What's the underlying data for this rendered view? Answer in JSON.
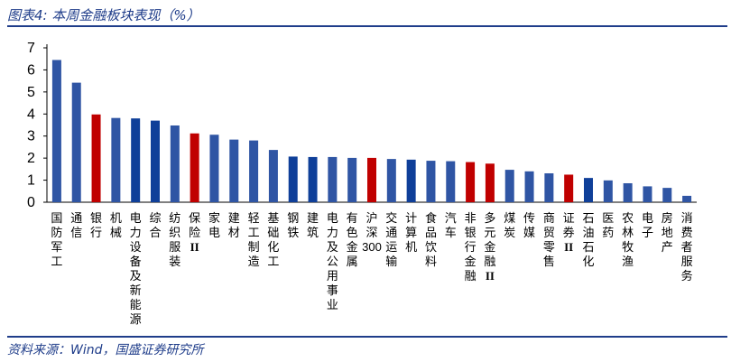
{
  "header": {
    "title": "图表4:  本周金融板块表现（%）"
  },
  "footer": {
    "source": "资料来源：Wind，国盛证券研究所"
  },
  "colors": {
    "blue": "#2f55a4",
    "dark_blue": "#0f3f99",
    "red": "#c00000",
    "title_blue": "#1f3d8a"
  },
  "chart_data": {
    "type": "bar",
    "title": "本周金融板块表现（%）",
    "xlabel": "",
    "ylabel": "",
    "ylim": [
      0,
      7
    ],
    "yticks": [
      0,
      1,
      2,
      3,
      4,
      5,
      6,
      7
    ],
    "grid": false,
    "categories": [
      "国防军工",
      "通信",
      "银行",
      "机械",
      "电力设备及新能源",
      "综合",
      "纺织服装",
      "保险II",
      "家电",
      "建材",
      "轻工制造",
      "基础化工",
      "钢铁",
      "建筑",
      "电力及公用事业",
      "有色金属",
      "沪深300",
      "交通运输",
      "计算机",
      "食品饮料",
      "汽车",
      "非银行金融",
      "多元金融II",
      "煤炭",
      "传媒",
      "商贸零售",
      "证券II",
      "石油石化",
      "医药",
      "农林牧渔",
      "电子",
      "房地产",
      "消费者服务"
    ],
    "values": [
      6.45,
      5.42,
      3.98,
      3.82,
      3.8,
      3.7,
      3.48,
      3.12,
      3.06,
      2.84,
      2.8,
      2.37,
      2.07,
      2.05,
      2.05,
      2.01,
      2.01,
      1.96,
      1.93,
      1.88,
      1.86,
      1.82,
      1.75,
      1.47,
      1.4,
      1.31,
      1.25,
      1.1,
      0.99,
      0.86,
      0.72,
      0.65,
      0.29
    ],
    "highlight_red": [
      "银行",
      "保险II",
      "沪深300",
      "非银行金融",
      "多元金融II",
      "证券II"
    ],
    "highlight_dark_blue": [
      "电力设备及新能源",
      "综合",
      "钢铁",
      "建筑",
      "计算机",
      "石油石化"
    ]
  }
}
